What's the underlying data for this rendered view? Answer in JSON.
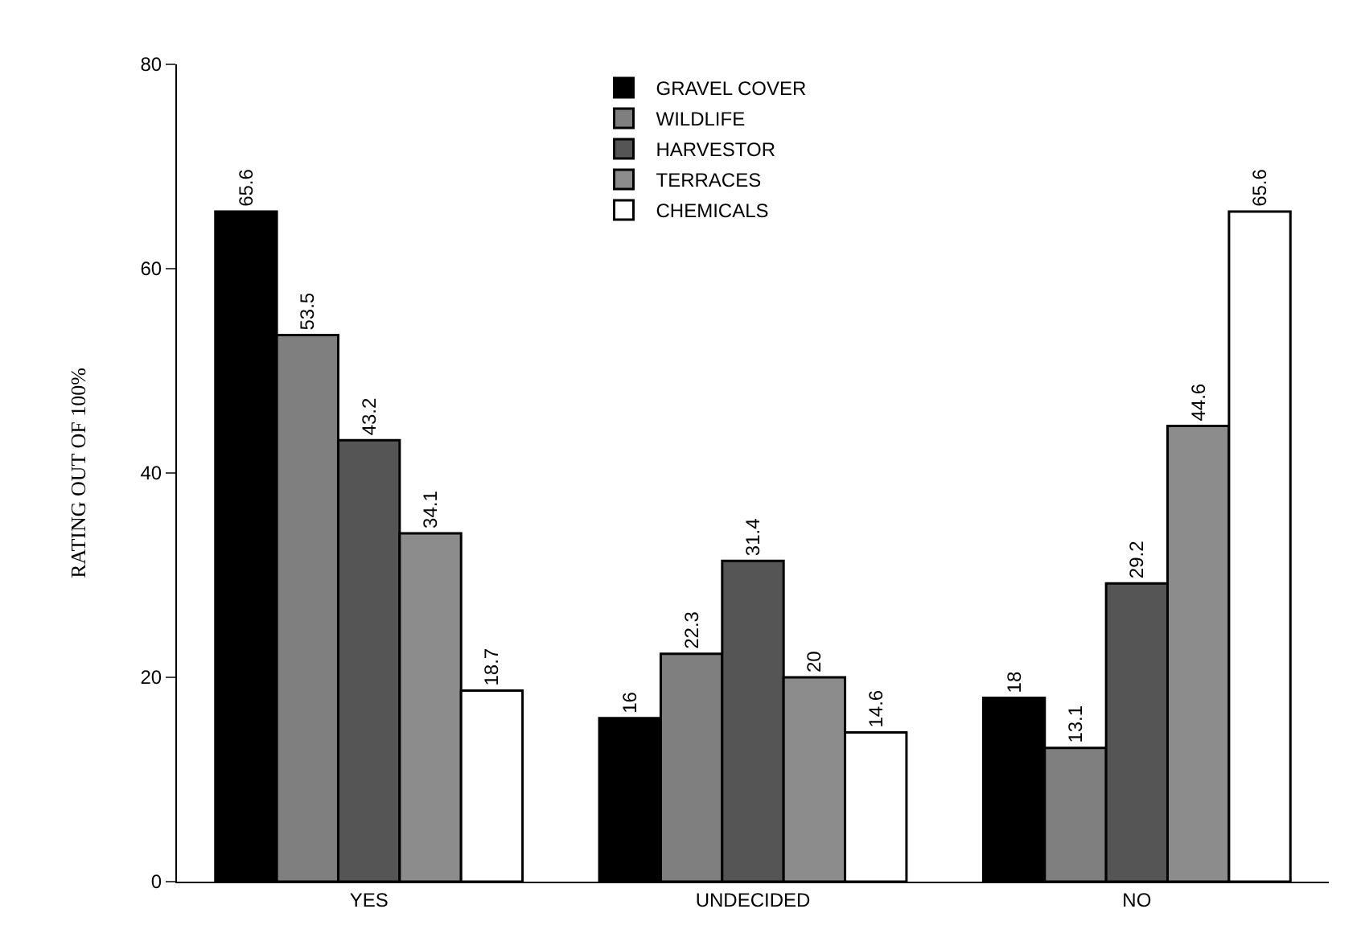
{
  "chart_data": {
    "type": "bar",
    "ylabel": "RATING OUT OF 100%",
    "categories": [
      "YES",
      "UNDECIDED",
      "NO"
    ],
    "series": [
      {
        "name": "GRAVEL COVER",
        "color": "#000000",
        "values": [
          65.6,
          16,
          18
        ]
      },
      {
        "name": "WILDLIFE",
        "color": "#7f7f7f",
        "values": [
          53.5,
          22.3,
          13.1
        ]
      },
      {
        "name": "HARVESTOR",
        "color": "#555555",
        "values": [
          43.2,
          31.4,
          29.2
        ]
      },
      {
        "name": "TERRACES",
        "color": "#8c8c8c",
        "values": [
          34.1,
          20,
          44.6
        ]
      },
      {
        "name": "CHEMICALS",
        "color": "#ffffff",
        "values": [
          18.7,
          14.6,
          65.6
        ]
      }
    ],
    "ylim": [
      0,
      80
    ],
    "yticks": [
      0,
      20,
      40,
      60,
      80
    ],
    "legend": "top",
    "data_labels": true
  }
}
